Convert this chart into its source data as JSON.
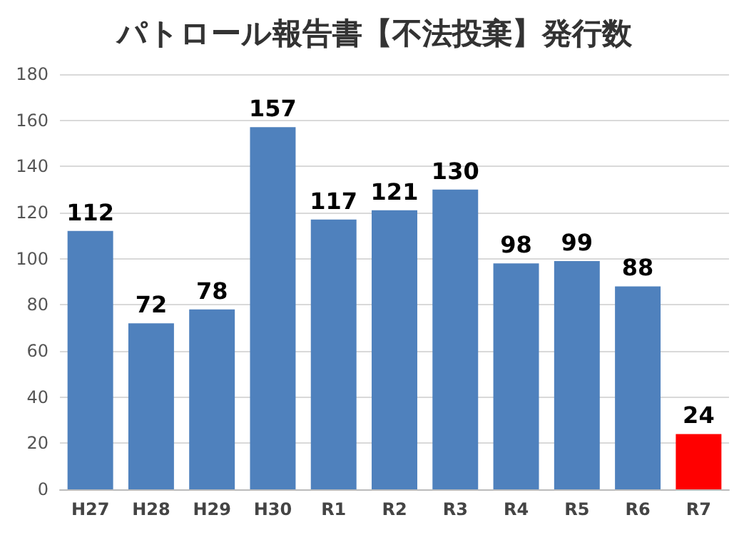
{
  "chart_data": {
    "type": "bar",
    "title": "パトロール報告書【不法投棄】発行数",
    "categories": [
      "H27",
      "H28",
      "H29",
      "H30",
      "R1",
      "R2",
      "R3",
      "R4",
      "R5",
      "R6",
      "R7"
    ],
    "values": [
      112,
      72,
      78,
      157,
      117,
      121,
      130,
      98,
      99,
      88,
      24
    ],
    "colors": [
      "#4f81bd",
      "#4f81bd",
      "#4f81bd",
      "#4f81bd",
      "#4f81bd",
      "#4f81bd",
      "#4f81bd",
      "#4f81bd",
      "#4f81bd",
      "#4f81bd",
      "#ff0000"
    ],
    "ylim": [
      0,
      180
    ],
    "yticks": [
      0,
      20,
      40,
      60,
      80,
      100,
      120,
      140,
      160,
      180
    ],
    "grid": "y",
    "data_labels": true
  }
}
